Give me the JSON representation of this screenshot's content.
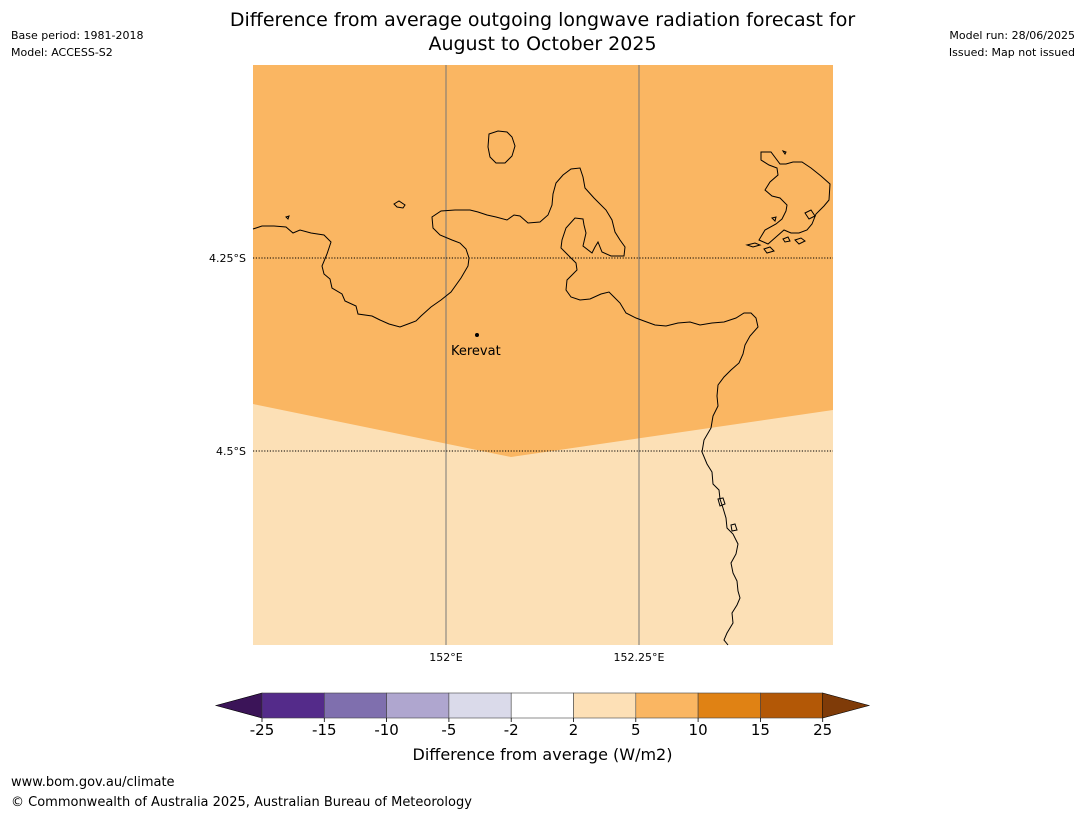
{
  "header": {
    "title_line1": "Difference from average outgoing longwave radiation forecast for",
    "title_line2": "August to October 2025",
    "base_period": "Base period: 1981-2018",
    "model": "Model: ACCESS-S2",
    "model_run": "Model run: 28/06/2025",
    "issued": "Issued: Map not issued"
  },
  "map": {
    "place_label": "Kerevat",
    "lat_labels": [
      "4.25°S",
      "4.5°S"
    ],
    "lon_labels": [
      "152°E",
      "152.25°E"
    ],
    "colors": {
      "anomaly_5_10": "#fab662",
      "anomaly_2_5": "#fce0b6",
      "coastline": "#000000",
      "gridline": "#777777"
    }
  },
  "colorbar": {
    "title": "Difference from average (W/m2)",
    "ticks": [
      "-25",
      "-15",
      "-10",
      "-5",
      "-2",
      "2",
      "5",
      "10",
      "15",
      "25"
    ],
    "colors": [
      "#3b1458",
      "#542b8a",
      "#7f6fae",
      "#afa6cf",
      "#dadaea",
      "#ffffff",
      "#fde0b6",
      "#fab662",
      "#e08214",
      "#b35806",
      "#7f3b08"
    ]
  },
  "footer": {
    "url": "www.bom.gov.au/climate",
    "copyright": "© Commonwealth of Australia 2025, Australian Bureau of Meteorology"
  }
}
